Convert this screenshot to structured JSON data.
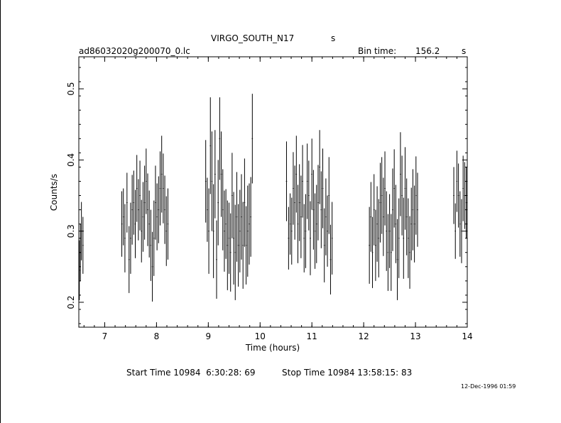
{
  "header": {
    "object": "VIRGO_SOUTH_N17",
    "object_suffix": "s",
    "filename": "ad86032020g200070_0.lc",
    "bin_label": "Bin time:",
    "bin_value": "156.2",
    "bin_unit": "s"
  },
  "footer": {
    "start": "Start Time 10984  6:30:28: 69",
    "stop": "Stop Time 10984 13:58:15: 83",
    "stamp": "12-Dec-1996 01:59"
  },
  "chart_data": {
    "type": "scatter",
    "title": "VIRGO_SOUTH_N17",
    "xlabel": "Time (hours)",
    "ylabel": "Counts/s",
    "xlim": [
      6.5,
      14.0
    ],
    "ylim": [
      0.165,
      0.545
    ],
    "x_ticks": [
      "7",
      "8",
      "9",
      "10",
      "11",
      "12",
      "13",
      "14"
    ],
    "y_ticks": [
      "0.2",
      "0.3",
      "0.4",
      "0.5"
    ],
    "grid": false,
    "error_bars": true,
    "series": [
      {
        "x": [
          6.51,
          6.53,
          6.55,
          6.58,
          7.33,
          7.36,
          7.39,
          7.43,
          7.47,
          7.5,
          7.53,
          7.56,
          7.59,
          7.62,
          7.65,
          7.68,
          7.71,
          7.74,
          7.77,
          7.8,
          7.83,
          7.86,
          7.89,
          7.92,
          7.95,
          7.98,
          8.01,
          8.04,
          8.07,
          8.1,
          8.13,
          8.16,
          8.19,
          8.22,
          8.95,
          8.98,
          9.01,
          9.04,
          9.07,
          9.1,
          9.13,
          9.16,
          9.19,
          9.22,
          9.25,
          9.28,
          9.31,
          9.34,
          9.37,
          9.4,
          9.43,
          9.46,
          9.49,
          9.52,
          9.55,
          9.58,
          9.61,
          9.64,
          9.67,
          9.7,
          9.73,
          9.76,
          9.79,
          9.82,
          9.85,
          10.51,
          10.55,
          10.58,
          10.61,
          10.64,
          10.67,
          10.7,
          10.73,
          10.76,
          10.79,
          10.82,
          10.85,
          10.88,
          10.91,
          10.94,
          10.97,
          11.0,
          11.03,
          11.06,
          11.09,
          11.12,
          11.15,
          11.18,
          11.21,
          11.24,
          11.27,
          11.3,
          11.33,
          11.36,
          11.39,
          12.11,
          12.14,
          12.17,
          12.2,
          12.23,
          12.26,
          12.29,
          12.32,
          12.35,
          12.38,
          12.41,
          12.44,
          12.47,
          12.5,
          12.53,
          12.56,
          12.59,
          12.62,
          12.65,
          12.68,
          12.71,
          12.74,
          12.77,
          12.8,
          12.83,
          12.86,
          12.89,
          12.92,
          12.95,
          12.98,
          13.01,
          13.04,
          13.74,
          13.77,
          13.8,
          13.83,
          13.86,
          13.89,
          13.92,
          13.95,
          13.98
        ],
        "y": [
          0.245,
          0.27,
          0.3,
          0.28,
          0.31,
          0.32,
          0.29,
          0.34,
          0.26,
          0.29,
          0.33,
          0.34,
          0.31,
          0.36,
          0.33,
          0.35,
          0.3,
          0.32,
          0.34,
          0.37,
          0.33,
          0.31,
          0.28,
          0.25,
          0.29,
          0.34,
          0.32,
          0.33,
          0.36,
          0.38,
          0.36,
          0.33,
          0.3,
          0.31,
          0.37,
          0.33,
          0.3,
          0.42,
          0.37,
          0.3,
          0.38,
          0.26,
          0.34,
          0.43,
          0.38,
          0.33,
          0.3,
          0.31,
          0.28,
          0.29,
          0.27,
          0.35,
          0.29,
          0.27,
          0.32,
          0.28,
          0.3,
          0.32,
          0.28,
          0.34,
          0.28,
          0.3,
          0.31,
          0.32,
          0.43,
          0.37,
          0.29,
          0.31,
          0.3,
          0.36,
          0.34,
          0.38,
          0.31,
          0.34,
          0.32,
          0.37,
          0.29,
          0.3,
          0.37,
          0.35,
          0.29,
          0.38,
          0.33,
          0.3,
          0.31,
          0.34,
          0.39,
          0.33,
          0.36,
          0.28,
          0.32,
          0.3,
          0.35,
          0.26,
          0.29,
          0.28,
          0.32,
          0.27,
          0.33,
          0.28,
          0.31,
          0.29,
          0.34,
          0.35,
          0.32,
          0.36,
          0.3,
          0.27,
          0.3,
          0.27,
          0.33,
          0.36,
          0.31,
          0.26,
          0.29,
          0.38,
          0.35,
          0.29,
          0.36,
          0.32,
          0.29,
          0.27,
          0.31,
          0.33,
          0.31,
          0.35,
          0.33,
          0.35,
          0.3,
          0.37,
          0.35,
          0.31,
          0.3,
          0.36,
          0.35,
          0.34
        ],
        "err": [
          0.042,
          0.04,
          0.041,
          0.04,
          0.046,
          0.04,
          0.048,
          0.042,
          0.047,
          0.05,
          0.049,
          0.045,
          0.048,
          0.047,
          0.043,
          0.049,
          0.044,
          0.049,
          0.052,
          0.046,
          0.051,
          0.047,
          0.05,
          0.049,
          0.053,
          0.052,
          0.047,
          0.047,
          0.052,
          0.054,
          0.049,
          0.048,
          0.049,
          0.05,
          0.058,
          0.045,
          0.06,
          0.068,
          0.07,
          0.066,
          0.062,
          0.055,
          0.06,
          0.058,
          0.06,
          0.057,
          0.057,
          0.049,
          0.063,
          0.05,
          0.055,
          0.06,
          0.065,
          0.067,
          0.063,
          0.058,
          0.058,
          0.06,
          0.061,
          0.062,
          0.055,
          0.064,
          0.057,
          0.056,
          0.063,
          0.056,
          0.044,
          0.043,
          0.047,
          0.051,
          0.052,
          0.054,
          0.055,
          0.054,
          0.058,
          0.051,
          0.048,
          0.052,
          0.053,
          0.049,
          0.052,
          0.05,
          0.056,
          0.053,
          0.055,
          0.053,
          0.052,
          0.054,
          0.056,
          0.052,
          0.054,
          0.05,
          0.054,
          0.049,
          0.051,
          0.054,
          0.049,
          0.05,
          0.05,
          0.05,
          0.053,
          0.055,
          0.056,
          0.054,
          0.055,
          0.052,
          0.056,
          0.054,
          0.052,
          0.054,
          0.058,
          0.055,
          0.055,
          0.057,
          0.056,
          0.059,
          0.056,
          0.057,
          0.058,
          0.054,
          0.056,
          0.051,
          0.051,
          0.057,
          0.054,
          0.055,
          0.052,
          0.04,
          0.039,
          0.043,
          0.045,
          0.046,
          0.045,
          0.046,
          0.047,
          0.05
        ],
        "xerr": 0.0217
      }
    ]
  }
}
